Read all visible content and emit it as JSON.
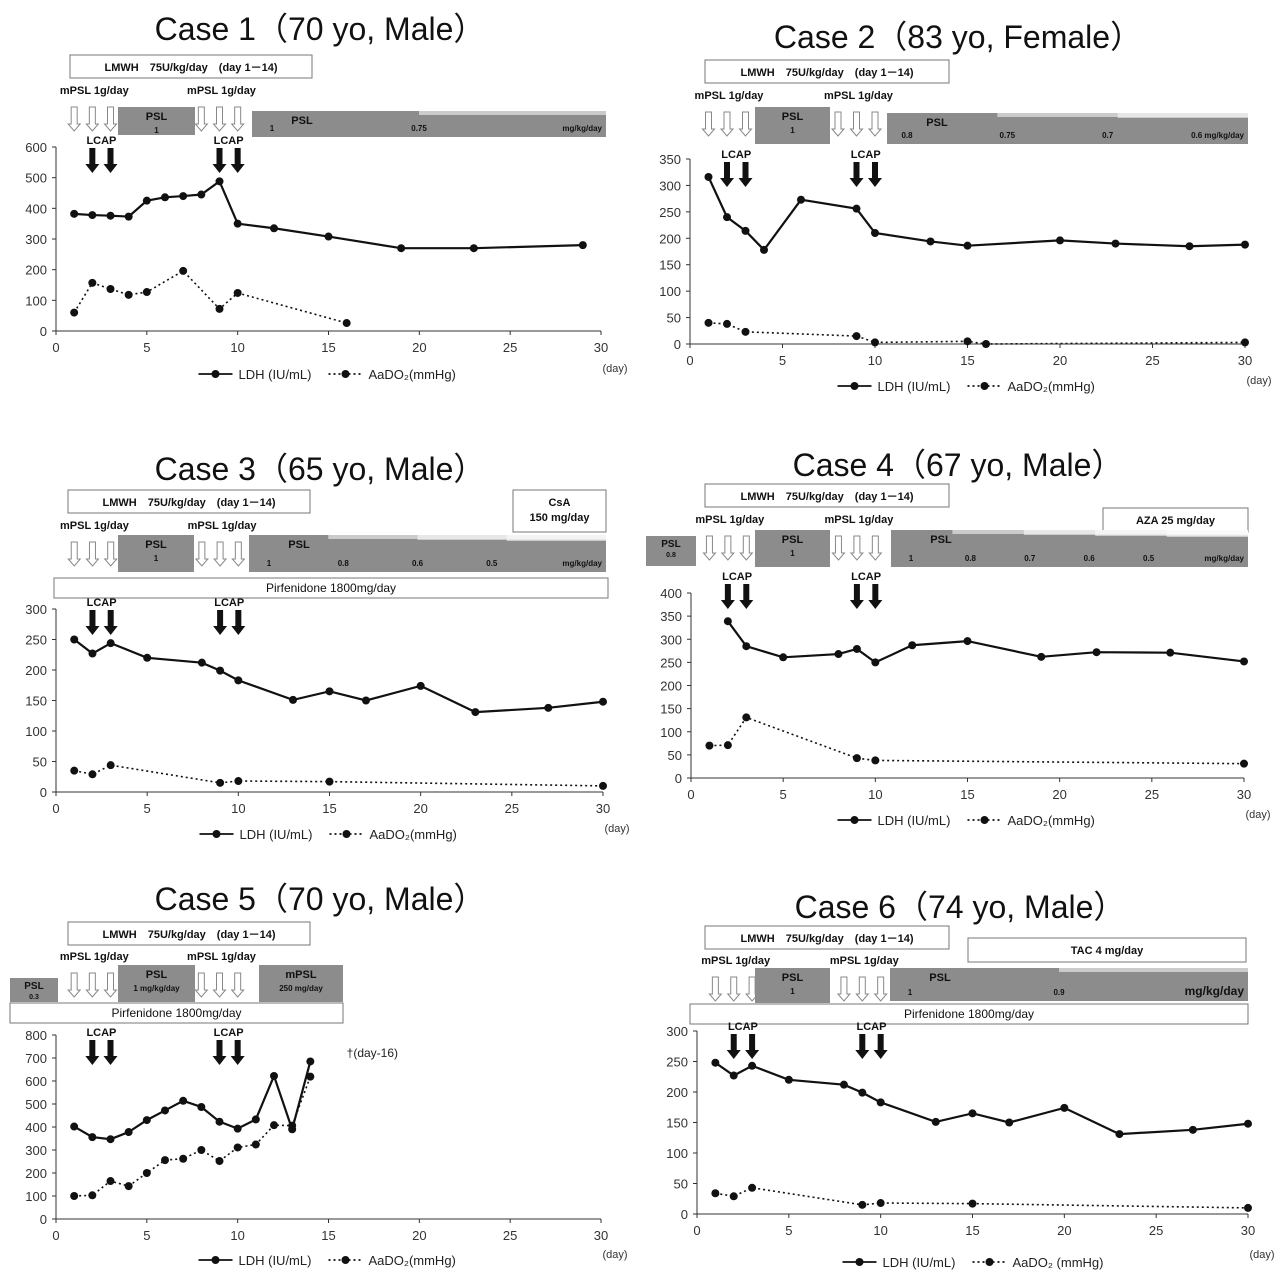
{
  "chart_data": [
    {
      "type": "line",
      "title": "Case 1（70 yo, Male）",
      "x_unit": "(day)",
      "xlim": [
        0,
        30
      ],
      "xticks": [
        0,
        5,
        10,
        15,
        20,
        25,
        30
      ],
      "ylim": [
        0,
        600
      ],
      "yticks": [
        0,
        100,
        200,
        300,
        400,
        500,
        600
      ],
      "grid": false,
      "legend_position": "bottom",
      "series": [
        {
          "name": "LDH (IU/mL)",
          "style": "solid",
          "x": [
            1,
            2,
            3,
            4,
            5,
            6,
            7,
            8,
            9,
            10,
            12,
            15,
            19,
            23,
            29
          ],
          "y": [
            382,
            378,
            376,
            373,
            425,
            436,
            440,
            445,
            488,
            350,
            335,
            308,
            270,
            270,
            280
          ]
        },
        {
          "name": "AaDO₂(mmHg)",
          "style": "dotted",
          "x": [
            1,
            2,
            3,
            4,
            5,
            7,
            9,
            10,
            16
          ],
          "y": [
            60,
            157,
            137,
            118,
            127,
            196,
            72,
            124,
            26
          ]
        }
      ],
      "drugs": [
        {
          "label": "LMWH　75U/kg/day　(day 1－14)"
        }
      ],
      "mpsl": [
        {
          "label": "mPSL  1g/day",
          "days": [
            1,
            2,
            3
          ]
        },
        {
          "label": "mPSL  1g/day",
          "days": [
            8,
            9,
            10
          ]
        }
      ],
      "psl_blocks": [
        {
          "label": "PSL",
          "doses": [
            "1"
          ]
        },
        {
          "label": "PSL",
          "doses": [
            "1",
            "0.75",
            "mg/kg/day"
          ]
        }
      ],
      "lcap": [
        {
          "label": "LCAP",
          "days": [
            2,
            3
          ]
        },
        {
          "label": "LCAP",
          "days": [
            9,
            10
          ]
        }
      ]
    },
    {
      "type": "line",
      "title": "Case 2（83 yo, Female）",
      "x_unit": "(day)",
      "xlim": [
        0,
        30
      ],
      "xticks": [
        0,
        5,
        10,
        15,
        20,
        25,
        30
      ],
      "ylim": [
        0,
        350
      ],
      "yticks": [
        0,
        50,
        100,
        150,
        200,
        250,
        300,
        350
      ],
      "grid": false,
      "legend_position": "bottom",
      "series": [
        {
          "name": "LDH (IU/mL)",
          "style": "solid",
          "x": [
            1,
            2,
            3,
            4,
            6,
            9,
            10,
            13,
            15,
            20,
            23,
            27,
            30
          ],
          "y": [
            316,
            240,
            214,
            178,
            273,
            256,
            210,
            194,
            186,
            196,
            190,
            185,
            188
          ]
        },
        {
          "name": "AaDO₂(mmHg)",
          "style": "dotted",
          "x": [
            1,
            2,
            3,
            9,
            10,
            15,
            16,
            30
          ],
          "y": [
            40,
            38,
            23,
            15,
            3,
            5,
            0,
            3
          ]
        }
      ],
      "drugs": [
        {
          "label": "LMWH　75U/kg/day　(day 1－14)"
        }
      ],
      "mpsl": [
        {
          "label": "mPSL  1g/day",
          "days": [
            1,
            2,
            3
          ]
        },
        {
          "label": "mPSL  1g/day",
          "days": [
            8,
            9,
            10
          ]
        }
      ],
      "psl_blocks": [
        {
          "label": "PSL",
          "doses": [
            "1"
          ]
        },
        {
          "label": "PSL",
          "doses": [
            "0.8",
            "0.75",
            "0.7",
            "0.6 mg/kg/day"
          ]
        }
      ],
      "lcap": [
        {
          "label": "LCAP",
          "days": [
            2,
            3
          ]
        },
        {
          "label": "LCAP",
          "days": [
            9,
            10
          ]
        }
      ]
    },
    {
      "type": "line",
      "title": "Case 3（65 yo, Male）",
      "x_unit": "(day)",
      "xlim": [
        0,
        30
      ],
      "xticks": [
        0,
        5,
        10,
        15,
        20,
        25,
        30
      ],
      "ylim": [
        0,
        300
      ],
      "yticks": [
        0,
        50,
        100,
        150,
        200,
        250,
        300
      ],
      "grid": false,
      "legend_position": "bottom",
      "series": [
        {
          "name": "LDH (IU/mL)",
          "style": "solid",
          "x": [
            1,
            2,
            3,
            5,
            8,
            9,
            10,
            13,
            15,
            17,
            20,
            23,
            27,
            30
          ],
          "y": [
            250,
            227,
            244,
            220,
            212,
            199,
            183,
            151,
            165,
            150,
            174,
            131,
            138,
            148
          ]
        },
        {
          "name": "AaDO₂(mmHg)",
          "style": "dotted",
          "x": [
            1,
            2,
            3,
            9,
            10,
            15,
            30
          ],
          "y": [
            35,
            29,
            44,
            15,
            18,
            17,
            10
          ]
        }
      ],
      "drugs": [
        {
          "label": "LMWH　75U/kg/day　(day 1－14)"
        },
        {
          "label": "CsA\n150 mg/day"
        },
        {
          "label": "Pirfenidone  1800mg/day"
        }
      ],
      "mpsl": [
        {
          "label": "mPSL  1g/day",
          "days": [
            1,
            2,
            3
          ]
        },
        {
          "label": "mPSL  1g/day",
          "days": [
            8,
            9,
            10
          ]
        }
      ],
      "psl_blocks": [
        {
          "label": "PSL",
          "doses": [
            "1"
          ]
        },
        {
          "label": "PSL",
          "doses": [
            "1",
            "0.8",
            "0.6",
            "0.5",
            "mg/kg/day"
          ]
        }
      ],
      "lcap": [
        {
          "label": "LCAP",
          "days": [
            2,
            3
          ]
        },
        {
          "label": "LCAP",
          "days": [
            9,
            10
          ]
        }
      ]
    },
    {
      "type": "line",
      "title": "Case 4（67 yo, Male）",
      "x_unit": "(day)",
      "xlim": [
        0,
        30
      ],
      "xticks": [
        0,
        5,
        10,
        15,
        20,
        25,
        30
      ],
      "ylim": [
        0,
        400
      ],
      "yticks": [
        0,
        50,
        100,
        150,
        200,
        250,
        300,
        350,
        400
      ],
      "grid": false,
      "legend_position": "bottom",
      "series": [
        {
          "name": "LDH (IU/mL)",
          "style": "solid",
          "x": [
            2,
            3,
            5,
            8,
            9,
            10,
            12,
            15,
            19,
            22,
            26,
            30
          ],
          "y": [
            339,
            285,
            261,
            268,
            279,
            250,
            287,
            296,
            262,
            272,
            271,
            252
          ]
        },
        {
          "name": "AaDO₂(mmHg)",
          "style": "dotted",
          "x": [
            1,
            2,
            3,
            9,
            10,
            30
          ],
          "y": [
            70,
            71,
            131,
            43,
            38,
            31
          ]
        }
      ],
      "drugs": [
        {
          "label": "LMWH　75U/kg/day　(day 1－14)"
        },
        {
          "label": "AZA 25 mg/day"
        }
      ],
      "pre_psl": {
        "label": "PSL",
        "dose": "0.8"
      },
      "mpsl": [
        {
          "label": "mPSL  1g/day",
          "days": [
            1,
            2,
            3
          ]
        },
        {
          "label": "mPSL  1g/day",
          "days": [
            8,
            9,
            10
          ]
        }
      ],
      "psl_blocks": [
        {
          "label": "PSL",
          "doses": [
            "1"
          ]
        },
        {
          "label": "PSL",
          "doses": [
            "1",
            "0.8",
            "0.7",
            "0.6",
            "0.5",
            "mg/kg/day"
          ]
        }
      ],
      "lcap": [
        {
          "label": "LCAP",
          "days": [
            2,
            3
          ]
        },
        {
          "label": "LCAP",
          "days": [
            9,
            10
          ]
        }
      ]
    },
    {
      "type": "line",
      "title": "Case 5（70  yo, Male）",
      "x_unit": "(day)",
      "xlim": [
        0,
        30
      ],
      "xticks": [
        0,
        5,
        10,
        15,
        20,
        25,
        30
      ],
      "ylim": [
        0,
        800
      ],
      "yticks": [
        0,
        100,
        200,
        300,
        400,
        500,
        600,
        700,
        800
      ],
      "grid": false,
      "legend_position": "bottom",
      "death_note": "†(day-16)",
      "series": [
        {
          "name": "LDH (IU/mL)",
          "style": "solid",
          "x": [
            1,
            2,
            3,
            4,
            5,
            6,
            7,
            8,
            9,
            10,
            11,
            12,
            13,
            14
          ],
          "y": [
            402,
            356,
            347,
            378,
            430,
            472,
            514,
            487,
            423,
            393,
            433,
            622,
            390,
            685
          ]
        },
        {
          "name": "AaDO₂(mmHg)",
          "style": "dotted",
          "x": [
            1,
            2,
            3,
            4,
            5,
            6,
            7,
            8,
            9,
            10,
            11,
            12,
            13,
            14
          ],
          "y": [
            100,
            103,
            165,
            143,
            200,
            256,
            262,
            300,
            252,
            311,
            324,
            408,
            406,
            619
          ]
        }
      ],
      "drugs": [
        {
          "label": "LMWH　75U/kg/day　(day 1－14)"
        },
        {
          "label": "Pirfenidone  1800mg/day"
        }
      ],
      "pre_psl": {
        "label": "PSL",
        "dose": "0.3"
      },
      "mpsl": [
        {
          "label": "mPSL  1g/day",
          "days": [
            1,
            2,
            3
          ]
        },
        {
          "label": "mPSL  1g/day",
          "days": [
            8,
            9,
            10
          ]
        }
      ],
      "psl_blocks": [
        {
          "label": "PSL",
          "doses": [
            "1 mg/kg/day"
          ]
        },
        {
          "label": "mPSL",
          "doses": [
            "250 mg/day"
          ]
        }
      ],
      "lcap": [
        {
          "label": "LCAP",
          "days": [
            2,
            3
          ]
        },
        {
          "label": "LCAP",
          "days": [
            9,
            10
          ]
        }
      ]
    },
    {
      "type": "line",
      "title": "Case 6（74 yo, Male）",
      "x_unit": "(day)",
      "xlim": [
        0,
        30
      ],
      "xticks": [
        0,
        5,
        10,
        15,
        20,
        25,
        30
      ],
      "ylim": [
        0,
        300
      ],
      "yticks": [
        0,
        50,
        100,
        150,
        200,
        250,
        300
      ],
      "grid": false,
      "legend_position": "bottom",
      "series": [
        {
          "name": "LDH (IU/mL)",
          "style": "solid",
          "x": [
            1,
            2,
            3,
            5,
            8,
            9,
            10,
            13,
            15,
            17,
            20,
            23,
            27,
            30
          ],
          "y": [
            248,
            227,
            243,
            220,
            212,
            199,
            183,
            151,
            165,
            150,
            174,
            131,
            138,
            148
          ]
        },
        {
          "name": "AaDO₂ (mmHg)",
          "style": "dotted",
          "x": [
            1,
            2,
            3,
            9,
            10,
            15,
            30
          ],
          "y": [
            34,
            29,
            43,
            15,
            18,
            17,
            10
          ]
        }
      ],
      "drugs": [
        {
          "label": "LMWH　75U/kg/day　(day 1－14)"
        },
        {
          "label": "TAC 4 mg/day"
        },
        {
          "label": "Pirfenidone  1800mg/day"
        }
      ],
      "mpsl": [
        {
          "label": "mPSL  1g/day",
          "days": [
            1,
            2,
            3
          ]
        },
        {
          "label": "mPSL  1g/day",
          "days": [
            8,
            9,
            10
          ]
        }
      ],
      "psl_blocks": [
        {
          "label": "PSL",
          "doses": [
            "1"
          ]
        },
        {
          "label": "PSL",
          "doses": [
            "1",
            "0.9",
            "mg/kg/day"
          ]
        }
      ],
      "lcap": [
        {
          "label": "LCAP",
          "days": [
            2,
            3
          ]
        },
        {
          "label": "LCAP",
          "days": [
            9,
            10
          ]
        }
      ]
    }
  ]
}
